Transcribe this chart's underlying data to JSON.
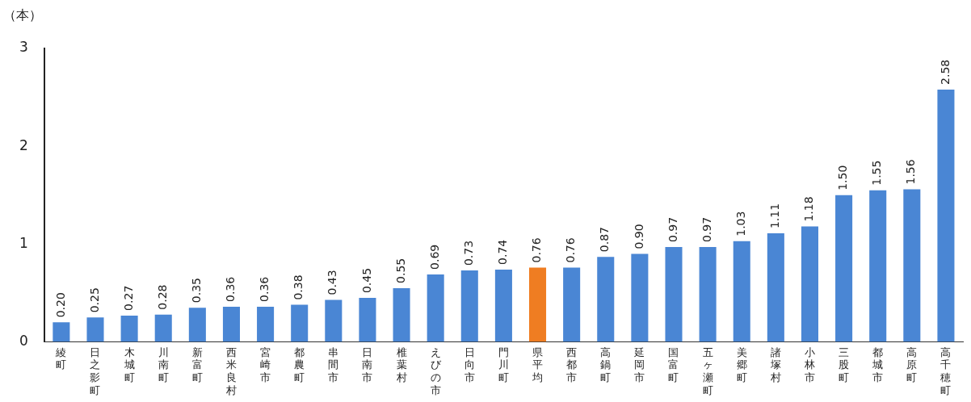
{
  "chart_data": {
    "type": "bar",
    "ylabel": "（本）",
    "categories": [
      "綾町",
      "日之影町",
      "木城町",
      "川南町",
      "新富町",
      "西米良村",
      "宮崎市",
      "都農町",
      "串間市",
      "日南市",
      "椎葉村",
      "えびの市",
      "日向市",
      "門川町",
      "県平均",
      "西都市",
      "高鍋町",
      "延岡市",
      "国富町",
      "五ヶ瀬町",
      "美郷町",
      "諸塚村",
      "小林市",
      "三股町",
      "都城市",
      "高原町",
      "高千穂町"
    ],
    "values": [
      0.2,
      0.25,
      0.27,
      0.28,
      0.35,
      0.36,
      0.36,
      0.38,
      0.43,
      0.45,
      0.55,
      0.69,
      0.73,
      0.74,
      0.76,
      0.76,
      0.87,
      0.9,
      0.97,
      0.97,
      1.03,
      1.11,
      1.18,
      1.5,
      1.55,
      1.56,
      2.58
    ],
    "value_labels": [
      "0.20",
      "0.25",
      "0.27",
      "0.28",
      "0.35",
      "0.36",
      "0.36",
      "0.38",
      "0.43",
      "0.45",
      "0.55",
      "0.69",
      "0.73",
      "0.74",
      "0.76",
      "0.76",
      "0.87",
      "0.90",
      "0.97",
      "0.97",
      "1.03",
      "1.11",
      "1.18",
      "1.50",
      "1.55",
      "1.56",
      "2.58"
    ],
    "colors": [
      "#4a86d4",
      "#4a86d4",
      "#4a86d4",
      "#4a86d4",
      "#4a86d4",
      "#4a86d4",
      "#4a86d4",
      "#4a86d4",
      "#4a86d4",
      "#4a86d4",
      "#4a86d4",
      "#4a86d4",
      "#4a86d4",
      "#4a86d4",
      "#ef7d22",
      "#4a86d4",
      "#4a86d4",
      "#4a86d4",
      "#4a86d4",
      "#4a86d4",
      "#4a86d4",
      "#4a86d4",
      "#4a86d4",
      "#4a86d4",
      "#4a86d4",
      "#4a86d4",
      "#4a86d4"
    ],
    "ylim": [
      0,
      3
    ],
    "yticks": [
      0,
      1,
      2,
      3
    ],
    "grid": false,
    "legend": false
  }
}
